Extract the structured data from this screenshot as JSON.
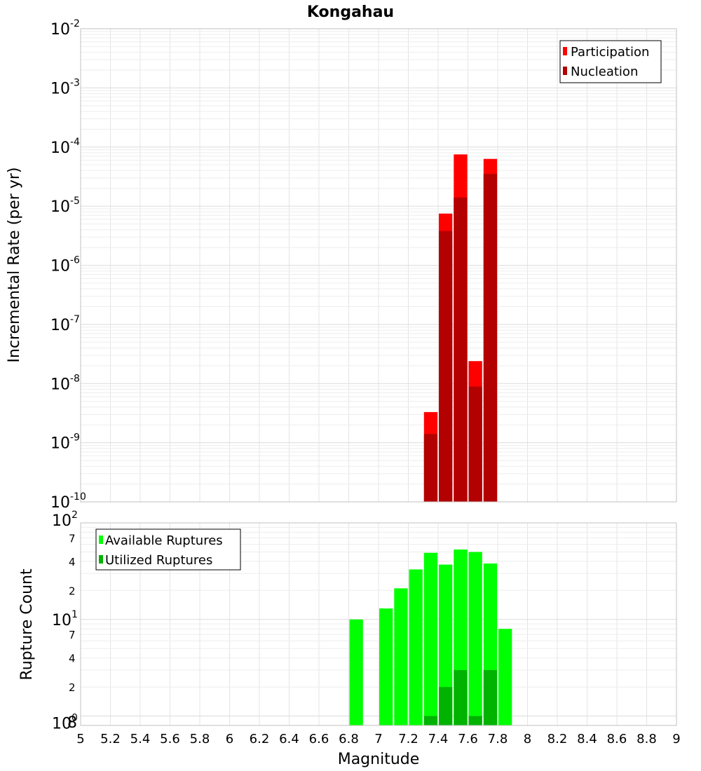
{
  "chart_data": [
    {
      "type": "bar",
      "title": "Kongahau",
      "xlabel": "",
      "ylabel": "Incremental Rate (per yr)",
      "y_scale": "log",
      "xlim": [
        5,
        9
      ],
      "ylim": [
        1e-10,
        0.01
      ],
      "bar_width": 0.1,
      "legend_position": "top-right",
      "y_ticks": [
        {
          "base": "10",
          "exp": "-2"
        },
        {
          "base": "10",
          "exp": "-3"
        },
        {
          "base": "10",
          "exp": "-4"
        },
        {
          "base": "10",
          "exp": "-5"
        },
        {
          "base": "10",
          "exp": "-6"
        },
        {
          "base": "10",
          "exp": "-7"
        },
        {
          "base": "10",
          "exp": "-8"
        },
        {
          "base": "10",
          "exp": "-9"
        },
        {
          "base": "10",
          "exp": "-10"
        }
      ],
      "x": [
        7.35,
        7.45,
        7.55,
        7.65,
        7.75
      ],
      "series": [
        {
          "name": "Participation",
          "color": "#ff0000",
          "values": [
            3.3e-09,
            7.5e-06,
            7.5e-05,
            2.4e-08,
            6.3e-05
          ]
        },
        {
          "name": "Nucleation",
          "color": "#b30000",
          "values": [
            1.4e-09,
            3.8e-06,
            1.4e-05,
            8.9e-09,
            3.5e-05
          ]
        }
      ]
    },
    {
      "type": "bar",
      "title": "",
      "xlabel": "Magnitude",
      "ylabel": "Rupture Count",
      "y_scale": "log",
      "xlim": [
        5,
        9
      ],
      "ylim": [
        0.8,
        100
      ],
      "bar_width": 0.1,
      "legend_position": "top-left",
      "x_ticks": [
        "5",
        "5.2",
        "5.4",
        "5.6",
        "5.8",
        "6",
        "6.2",
        "6.4",
        "6.6",
        "6.8",
        "7",
        "7.2",
        "7.4",
        "7.6",
        "7.8",
        "8",
        "8.2",
        "8.4",
        "8.6",
        "8.8",
        "9"
      ],
      "y_major_ticks": [
        {
          "base": "10",
          "exp": "2"
        },
        {
          "base": "10",
          "exp": "1"
        },
        {
          "base": "10",
          "exp": "0"
        }
      ],
      "y_minor_ticks": [
        "7",
        "4",
        "2",
        "7",
        "4",
        "2",
        "8"
      ],
      "x": [
        6.85,
        7.05,
        7.15,
        7.25,
        7.35,
        7.45,
        7.55,
        7.65,
        7.75,
        7.85
      ],
      "series": [
        {
          "name": "Available Ruptures",
          "color": "#00ff00",
          "values": [
            10,
            13,
            21,
            33,
            49,
            37,
            53,
            50,
            38,
            8
          ]
        },
        {
          "name": "Utilized Ruptures",
          "color": "#00b300",
          "values": [
            null,
            null,
            null,
            null,
            1,
            2,
            3,
            1,
            3,
            null
          ]
        }
      ]
    }
  ]
}
